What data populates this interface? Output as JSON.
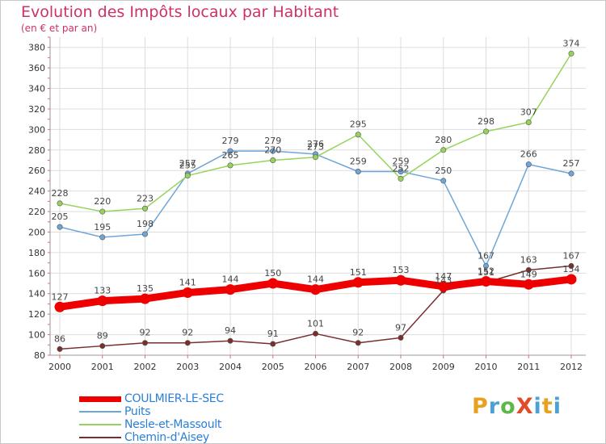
{
  "title": "Evolution des Impôts locaux par Habitant",
  "subtitle": "(en € et par an)",
  "logo": "ProXiti",
  "chart_data": {
    "type": "line",
    "title": "Evolution des Impôts locaux par Habitant",
    "subtitle": "(en € et par an)",
    "xlabel": "",
    "ylabel": "",
    "x": [
      "2000",
      "2001",
      "2002",
      "2003",
      "2004",
      "2005",
      "2006",
      "2007",
      "2008",
      "2009",
      "2010",
      "2011",
      "2012"
    ],
    "ylim": [
      80,
      390
    ],
    "yticks": [
      80,
      100,
      120,
      140,
      160,
      180,
      200,
      220,
      240,
      260,
      280,
      300,
      320,
      340,
      360,
      380
    ],
    "grid": true,
    "legend_position": "bottom-left",
    "series": [
      {
        "name": "COULMIER-LE-SEC",
        "color": "#ee0000",
        "values": [
          127,
          133,
          135,
          141,
          144,
          150,
          144,
          151,
          153,
          147,
          152,
          149,
          154
        ],
        "labels": [
          "127",
          "133",
          "135",
          "141",
          "144",
          "150",
          "144",
          "151",
          "153",
          "147",
          "152",
          "149",
          "154"
        ]
      },
      {
        "name": "Puits",
        "color": "#6fa6d8",
        "values": [
          205,
          195,
          198,
          257,
          279,
          279,
          276,
          259,
          259,
          250,
          167,
          266,
          257
        ],
        "labels": [
          "205",
          "195",
          "198",
          "257",
          "279",
          "279",
          "276",
          "259",
          "259",
          "250",
          "167",
          "266",
          "257"
        ]
      },
      {
        "name": "Nesle-et-Massoult",
        "color": "#96d35c",
        "values": [
          228,
          220,
          223,
          255,
          265,
          270,
          273,
          295,
          252,
          280,
          298,
          307,
          374
        ],
        "labels": [
          "228",
          "220",
          "223",
          "255",
          "265",
          "270",
          "273",
          "295",
          "252",
          "280",
          "298",
          "307",
          "374"
        ]
      },
      {
        "name": "Chemin-d'Aisey",
        "color": "#7a2e2e",
        "values": [
          86,
          89,
          92,
          92,
          94,
          91,
          101,
          92,
          97,
          143,
          151,
          163,
          167
        ],
        "labels": [
          "86",
          "89",
          "92",
          "92",
          "94",
          "91",
          "101",
          "92",
          "97",
          "143",
          "151",
          "163",
          "167"
        ]
      }
    ]
  }
}
